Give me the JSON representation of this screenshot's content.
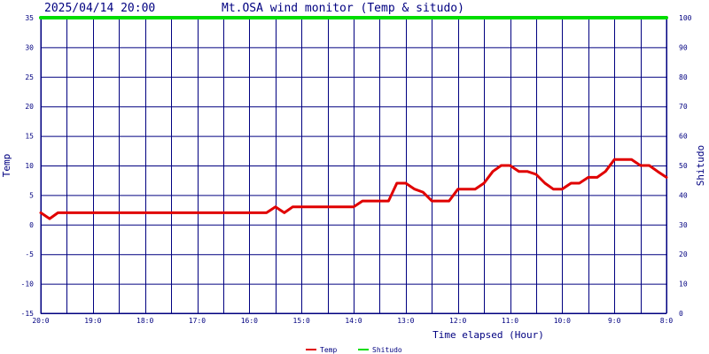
{
  "header": {
    "timestamp": "2025/04/14 20:00",
    "title": "Mt.OSA wind monitor (Temp & situdo)"
  },
  "colors": {
    "background": "#ffffff",
    "grid": "#000080",
    "text": "#000080",
    "temp": "#e00000",
    "shitudo": "#00dd00"
  },
  "chart_data": {
    "type": "line",
    "title": "Mt.OSA wind monitor (Temp & situdo)",
    "xlabel": "Time elapsed (Hour)",
    "ylabel": "Temp",
    "y2label": "Shitudo",
    "ylim": [
      -15,
      35
    ],
    "y2lim": [
      0,
      100
    ],
    "yticks": [
      35,
      30,
      25,
      20,
      15,
      10,
      5,
      0,
      -5,
      -10,
      -15
    ],
    "y2ticks": [
      100,
      90,
      80,
      70,
      60,
      50,
      40,
      30,
      20,
      10,
      0
    ],
    "xlim": [
      0,
      12
    ],
    "xticks": [
      {
        "x": 0,
        "label": "20:0"
      },
      {
        "x": 1,
        "label": "19:0"
      },
      {
        "x": 2,
        "label": "18:0"
      },
      {
        "x": 3,
        "label": "17:0"
      },
      {
        "x": 4,
        "label": "16:0"
      },
      {
        "x": 5,
        "label": "15:0"
      },
      {
        "x": 6,
        "label": "14:0"
      },
      {
        "x": 7,
        "label": "13:0"
      },
      {
        "x": 8,
        "label": "12:0"
      },
      {
        "x": 9,
        "label": "11:0"
      },
      {
        "x": 10,
        "label": "10:0"
      },
      {
        "x": 11,
        "label": "9:0"
      },
      {
        "x": 12,
        "label": "8:0"
      }
    ],
    "grid": true,
    "legend": "bottom-center",
    "series": [
      {
        "name": "Temp",
        "axis": "left",
        "color": "#e00000",
        "points": [
          [
            0,
            2
          ],
          [
            0.17,
            1
          ],
          [
            0.33,
            2
          ],
          [
            0.5,
            2
          ],
          [
            1,
            2
          ],
          [
            2,
            2
          ],
          [
            3,
            2
          ],
          [
            4,
            2
          ],
          [
            4.33,
            2
          ],
          [
            4.5,
            3
          ],
          [
            4.67,
            2
          ],
          [
            4.83,
            3
          ],
          [
            5,
            3
          ],
          [
            5.5,
            3
          ],
          [
            6,
            3
          ],
          [
            6.17,
            4
          ],
          [
            6.5,
            4
          ],
          [
            6.67,
            4
          ],
          [
            6.83,
            7
          ],
          [
            7,
            7
          ],
          [
            7.17,
            6
          ],
          [
            7.33,
            5.5
          ],
          [
            7.5,
            4
          ],
          [
            7.83,
            4
          ],
          [
            8,
            6
          ],
          [
            8.33,
            6
          ],
          [
            8.5,
            7
          ],
          [
            8.67,
            9
          ],
          [
            8.83,
            10
          ],
          [
            9,
            10
          ],
          [
            9.17,
            9
          ],
          [
            9.33,
            9
          ],
          [
            9.5,
            8.5
          ],
          [
            9.67,
            7
          ],
          [
            9.83,
            6
          ],
          [
            10,
            6
          ],
          [
            10.17,
            7
          ],
          [
            10.33,
            7
          ],
          [
            10.5,
            8
          ],
          [
            10.67,
            8
          ],
          [
            10.83,
            9
          ],
          [
            11,
            11
          ],
          [
            11.33,
            11
          ],
          [
            11.5,
            10
          ],
          [
            11.67,
            10
          ],
          [
            11.83,
            9
          ],
          [
            12,
            8
          ]
        ]
      },
      {
        "name": "Shitudo",
        "axis": "right",
        "color": "#00dd00",
        "points": [
          [
            0,
            100
          ],
          [
            12,
            100
          ]
        ]
      }
    ]
  }
}
